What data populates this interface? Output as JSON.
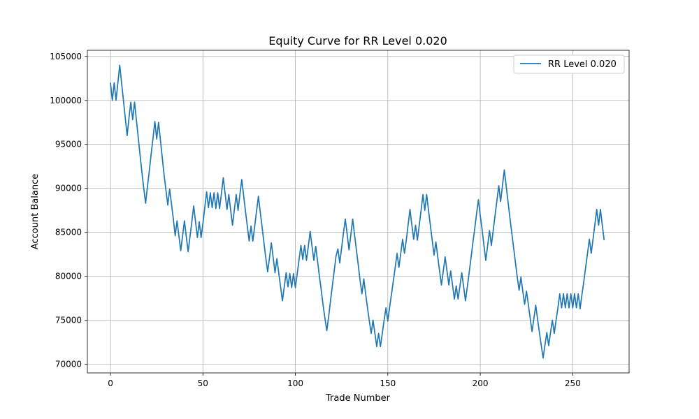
{
  "chart_data": {
    "type": "line",
    "title": "Equity Curve for RR Level 0.020",
    "xlabel": "Trade Number",
    "ylabel": "Account Balance",
    "xlim": [
      -12.5,
      280.5
    ],
    "ylim": [
      69000,
      105700
    ],
    "xticks": [
      0,
      50,
      100,
      150,
      200,
      250
    ],
    "yticks": [
      70000,
      75000,
      80000,
      85000,
      90000,
      95000,
      100000,
      105000
    ],
    "grid": true,
    "legend_position": "upper-right",
    "colors": {
      "line": "#1f77b4",
      "grid": "#b0b0b0",
      "legend_border": "#cccccc"
    },
    "series": [
      {
        "name": "RR Level 0.020",
        "x": [
          0,
          1,
          2,
          3,
          4,
          5,
          6,
          7,
          8,
          9,
          10,
          11,
          12,
          13,
          14,
          15,
          16,
          17,
          18,
          19,
          20,
          21,
          22,
          23,
          24,
          25,
          26,
          27,
          28,
          29,
          30,
          31,
          32,
          33,
          34,
          35,
          36,
          37,
          38,
          39,
          40,
          41,
          42,
          43,
          44,
          45,
          46,
          47,
          48,
          49,
          50,
          51,
          52,
          53,
          54,
          55,
          56,
          57,
          58,
          59,
          60,
          61,
          62,
          63,
          64,
          65,
          66,
          67,
          68,
          69,
          70,
          71,
          72,
          73,
          74,
          75,
          76,
          77,
          78,
          79,
          80,
          81,
          82,
          83,
          84,
          85,
          86,
          87,
          88,
          89,
          90,
          91,
          92,
          93,
          94,
          95,
          96,
          97,
          98,
          99,
          100,
          101,
          102,
          103,
          104,
          105,
          106,
          107,
          108,
          109,
          110,
          111,
          112,
          113,
          114,
          115,
          116,
          117,
          118,
          119,
          120,
          121,
          122,
          123,
          124,
          125,
          126,
          127,
          128,
          129,
          130,
          131,
          132,
          133,
          134,
          135,
          136,
          137,
          138,
          139,
          140,
          141,
          142,
          143,
          144,
          145,
          146,
          147,
          148,
          149,
          150,
          151,
          152,
          153,
          154,
          155,
          156,
          157,
          158,
          159,
          160,
          161,
          162,
          163,
          164,
          165,
          166,
          167,
          168,
          169,
          170,
          171,
          172,
          173,
          174,
          175,
          176,
          177,
          178,
          179,
          180,
          181,
          182,
          183,
          184,
          185,
          186,
          187,
          188,
          189,
          190,
          191,
          192,
          193,
          194,
          195,
          196,
          197,
          198,
          199,
          200,
          201,
          202,
          203,
          204,
          205,
          206,
          207,
          208,
          209,
          210,
          211,
          212,
          213,
          214,
          215,
          216,
          217,
          218,
          219,
          220,
          221,
          222,
          223,
          224,
          225,
          226,
          227,
          228,
          229,
          230,
          231,
          232,
          233,
          234,
          235,
          236,
          237,
          238,
          239,
          240,
          241,
          242,
          243,
          244,
          245,
          246,
          247,
          248,
          249,
          250,
          251,
          252,
          253,
          254,
          255,
          256,
          257,
          258,
          259,
          260,
          261,
          262,
          263,
          264,
          265,
          266,
          267
        ],
        "y": [
          102000,
          100000,
          102000,
          100000,
          102000,
          104000,
          102000,
          100000,
          98000,
          96000,
          98000,
          99800,
          97800,
          99800,
          97800,
          95800,
          93800,
          91800,
          90000,
          88300,
          90200,
          92000,
          93900,
          95700,
          97600,
          95600,
          97500,
          95500,
          93500,
          91500,
          89800,
          88100,
          89900,
          88200,
          86500,
          84600,
          86300,
          84600,
          82900,
          84600,
          86300,
          84500,
          82800,
          84500,
          86200,
          88000,
          86200,
          84400,
          86200,
          84400,
          86000,
          87800,
          89600,
          87800,
          89500,
          87800,
          89500,
          87700,
          89500,
          87700,
          89400,
          91200,
          89400,
          87600,
          89300,
          87500,
          85800,
          87600,
          89300,
          87500,
          89300,
          91000,
          89200,
          87400,
          85700,
          84000,
          85700,
          84000,
          85700,
          87400,
          89100,
          87300,
          85600,
          83800,
          82100,
          80500,
          82100,
          83800,
          82100,
          80400,
          82000,
          80400,
          78800,
          77200,
          78800,
          80400,
          78800,
          80300,
          78700,
          80300,
          78700,
          80300,
          81900,
          83500,
          81900,
          83500,
          81800,
          83400,
          85100,
          83400,
          81800,
          83400,
          81700,
          80000,
          78400,
          76700,
          75200,
          73800,
          75400,
          77200,
          78900,
          80600,
          82300,
          83100,
          81500,
          83200,
          84900,
          86500,
          84800,
          83000,
          84700,
          86500,
          84700,
          83000,
          81300,
          79500,
          78000,
          79700,
          78000,
          76400,
          74900,
          73500,
          75000,
          73500,
          72000,
          73500,
          72000,
          73500,
          75000,
          76400,
          74900,
          76500,
          78000,
          79500,
          81000,
          82600,
          81000,
          82600,
          84200,
          82600,
          84100,
          85900,
          87600,
          85800,
          84200,
          85800,
          84100,
          85800,
          87500,
          89300,
          87500,
          89300,
          87500,
          85800,
          84100,
          82400,
          83900,
          82200,
          80600,
          79000,
          80600,
          82200,
          80600,
          79000,
          80600,
          79000,
          77400,
          78900,
          77400,
          78900,
          80400,
          78800,
          77200,
          78800,
          80400,
          82100,
          83800,
          85400,
          87100,
          88700,
          86900,
          85300,
          83500,
          81800,
          83500,
          85200,
          83500,
          85200,
          86900,
          88600,
          90300,
          88500,
          90300,
          92100,
          90300,
          88500,
          86700,
          85000,
          83300,
          81600,
          79900,
          78400,
          79900,
          78300,
          76800,
          78300,
          76800,
          75200,
          73700,
          75200,
          76700,
          75100,
          73600,
          72100,
          70700,
          72200,
          73600,
          72100,
          73600,
          75000,
          73500,
          75000,
          76400,
          78000,
          76400,
          78000,
          76400,
          78000,
          76400,
          78000,
          76400,
          78000,
          76400,
          78000,
          76300,
          77900,
          79400,
          81000,
          82600,
          84200,
          82600,
          84200,
          85900,
          87600,
          85800,
          87600,
          85800,
          84100
        ]
      }
    ]
  }
}
